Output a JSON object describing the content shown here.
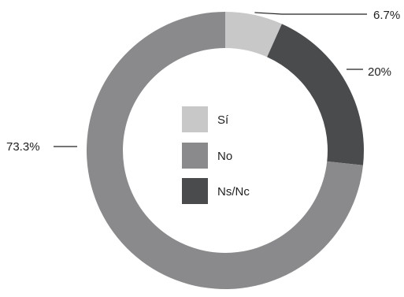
{
  "chart_data": {
    "type": "pie",
    "variant": "donut",
    "title": "",
    "categories": [
      "Sí",
      "No",
      "Ns/Nc"
    ],
    "values": [
      6.7,
      73.3,
      20
    ],
    "value_labels": [
      "6.7%",
      "73.3%",
      "20%"
    ],
    "colors": [
      "#c8c8c8",
      "#8a8a8c",
      "#4a4b4d"
    ],
    "legend_position": "center",
    "start_angle": "top",
    "direction": "clockwise",
    "slice_order": [
      "Sí",
      "Ns/Nc",
      "No"
    ]
  }
}
